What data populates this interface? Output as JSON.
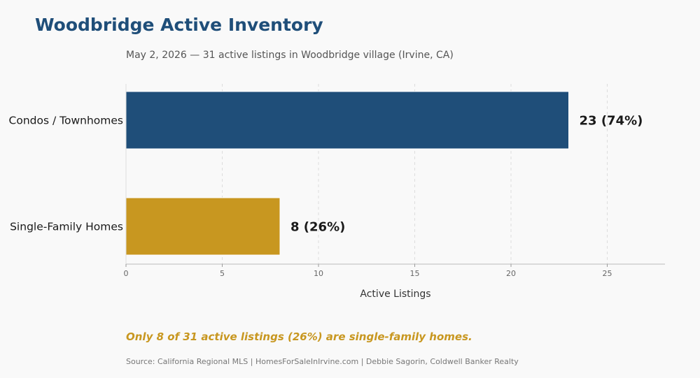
{
  "header": {
    "title": "Woodbridge Active Inventory",
    "subtitle": "May 2, 2026 — 31 active listings in Woodbridge village (Irvine, CA)"
  },
  "footer": {
    "callout": "Only 8 of 31 active listings (26%) are single-family homes.",
    "source": "Source: California Regional MLS  |  HomesForSaleInIrvine.com  |  Debbie Sagorin, Coldwell Banker Realty"
  },
  "chart_data": {
    "type": "bar",
    "orientation": "horizontal",
    "categories": [
      "Condos / Townhomes",
      "Single-Family Homes"
    ],
    "values": [
      23,
      8
    ],
    "value_labels": [
      "23  (74%)",
      "8  (26%)"
    ],
    "colors": [
      "#1f4e79",
      "#c89720"
    ],
    "xlabel": "Active Listings",
    "ylabel": "",
    "xlim": [
      0,
      28
    ],
    "xticks": [
      0,
      5,
      10,
      15,
      20,
      25
    ],
    "grid": "vertical dashed",
    "legend": "none"
  }
}
